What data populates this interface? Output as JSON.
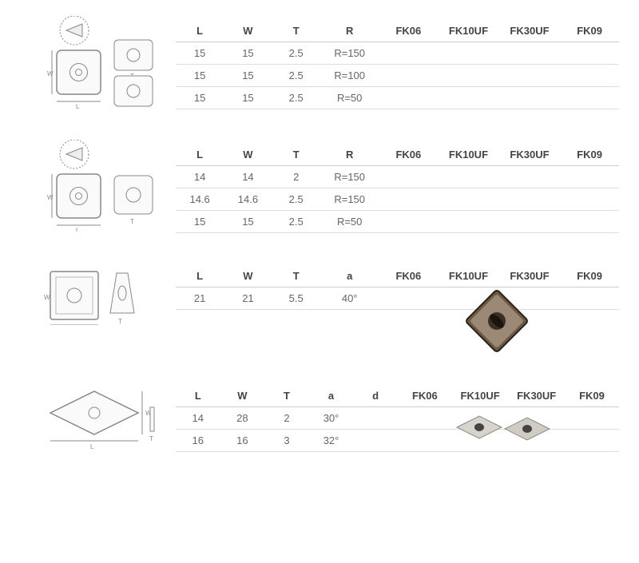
{
  "tables": [
    {
      "headers": [
        "L",
        "W",
        "T",
        "R",
        "FK06",
        "FK10UF",
        "FK30UF",
        "FK09"
      ],
      "rows": [
        [
          "15",
          "15",
          "2.5",
          "R=150",
          "",
          "",
          "",
          ""
        ],
        [
          "15",
          "15",
          "2.5",
          "R=100",
          "",
          "",
          "",
          ""
        ],
        [
          "15",
          "15",
          "2.5",
          "R=50",
          "",
          "",
          "",
          ""
        ]
      ]
    },
    {
      "headers": [
        "L",
        "W",
        "T",
        "R",
        "FK06",
        "FK10UF",
        "FK30UF",
        "FK09"
      ],
      "rows": [
        [
          "14",
          "14",
          "2",
          "R=150",
          "",
          "",
          "",
          ""
        ],
        [
          "14.6",
          "14.6",
          "2.5",
          "R=150",
          "",
          "",
          "",
          ""
        ],
        [
          "15",
          "15",
          "2.5",
          "R=50",
          "",
          "",
          "",
          ""
        ]
      ]
    },
    {
      "headers": [
        "L",
        "W",
        "T",
        "a",
        "FK06",
        "FK10UF",
        "FK30UF",
        "FK09"
      ],
      "rows": [
        [
          "21",
          "21",
          "5.5",
          "40°",
          "",
          "",
          "",
          ""
        ]
      ]
    },
    {
      "headers": [
        "L",
        "W",
        "T",
        "a",
        "d",
        "FK06",
        "FK10UF",
        "FK30UF",
        "FK09"
      ],
      "rows": [
        [
          "14",
          "28",
          "2",
          "30°",
          "",
          "",
          "",
          "",
          ""
        ],
        [
          "16",
          "16",
          "3",
          "32°",
          "",
          "",
          "",
          "",
          ""
        ]
      ]
    }
  ],
  "colors": {
    "line": "#888888",
    "fill": "#f5f5f5",
    "dark": "#333333",
    "photo": "#8a7560"
  }
}
